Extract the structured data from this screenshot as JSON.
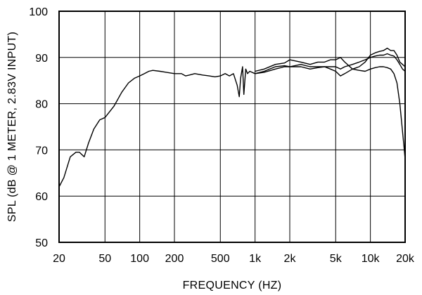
{
  "chart_data": {
    "type": "line",
    "title": "",
    "xlabel": "FREQUENCY  (HZ)",
    "ylabel": "SPL (dB @ 1 METER, 2.83V INPUT)",
    "x_scale": "log",
    "xlim": [
      20,
      20000
    ],
    "ylim": [
      50,
      100
    ],
    "grid": true,
    "x_ticks": [
      {
        "value": 20,
        "label": "20"
      },
      {
        "value": 50,
        "label": "50"
      },
      {
        "value": 100,
        "label": "100"
      },
      {
        "value": 200,
        "label": "200"
      },
      {
        "value": 500,
        "label": "500"
      },
      {
        "value": 1000,
        "label": "1k"
      },
      {
        "value": 2000,
        "label": "2k"
      },
      {
        "value": 5000,
        "label": "5k"
      },
      {
        "value": 10000,
        "label": "10k"
      },
      {
        "value": 20000,
        "label": "20k"
      }
    ],
    "y_ticks": [
      {
        "value": 50,
        "label": "50"
      },
      {
        "value": 60,
        "label": "60"
      },
      {
        "value": 70,
        "label": "70"
      },
      {
        "value": 80,
        "label": "80"
      },
      {
        "value": 90,
        "label": "90"
      },
      {
        "value": 100,
        "label": "100"
      }
    ],
    "series": [
      {
        "x": [
          20,
          22,
          25,
          28,
          30,
          33,
          36,
          40,
          45,
          50,
          60,
          70,
          80,
          90,
          100,
          110,
          120,
          130,
          150,
          170,
          200,
          230,
          250,
          270,
          300,
          350,
          400,
          450,
          500,
          550,
          600,
          650,
          700,
          730,
          750,
          780,
          800,
          830,
          860,
          900,
          1000,
          1200,
          1500,
          1800,
          2000,
          2500,
          3000,
          3500,
          4000,
          4500,
          5000,
          5500,
          6000,
          7000,
          8000,
          9000,
          10000,
          11000,
          12000,
          13000,
          14000,
          15000,
          16000,
          17000,
          18000,
          19000,
          20000
        ],
        "values": [
          62,
          64,
          68.5,
          69.5,
          69.5,
          68.5,
          71.5,
          74.5,
          76.5,
          77,
          79.5,
          82.5,
          84.5,
          85.5,
          86,
          86.5,
          87,
          87.2,
          87,
          86.8,
          86.5,
          86.5,
          86,
          86.2,
          86.5,
          86.2,
          86,
          85.8,
          86,
          86.5,
          86,
          86.5,
          84,
          81.5,
          85.5,
          88,
          82,
          87.5,
          86.5,
          87,
          86.5,
          87,
          88,
          88.2,
          88,
          88,
          87.5,
          87.8,
          88,
          88,
          88,
          87.5,
          88,
          88.5,
          89,
          89.5,
          90,
          90.3,
          90.5,
          90.5,
          90.8,
          90.5,
          90.3,
          89.5,
          88.5,
          87.5,
          87
        ]
      },
      {
        "x": [
          1000,
          1200,
          1500,
          1800,
          2000,
          2500,
          3000,
          3500,
          4000,
          4500,
          5000,
          5500,
          6000,
          7000,
          8000,
          9000,
          10000,
          11000,
          12000,
          13000,
          14000,
          15000,
          16000,
          17000,
          18000,
          19000,
          20000
        ],
        "values": [
          87,
          87.5,
          88.5,
          88.8,
          89.5,
          89,
          88.5,
          89,
          89,
          89.5,
          89.5,
          90,
          89,
          87.5,
          88,
          89,
          90.5,
          91,
          91.3,
          91.5,
          92,
          91.5,
          91.5,
          90.5,
          89,
          88.5,
          88
        ]
      },
      {
        "x": [
          1000,
          1200,
          1500,
          1800,
          2000,
          2500,
          3000,
          3500,
          4000,
          4500,
          5000,
          5500,
          6000,
          7000,
          8000,
          9000,
          10000,
          11000,
          12000,
          13000,
          14000,
          15000,
          16000,
          17000,
          18000,
          18500,
          19000,
          19500,
          20000
        ],
        "values": [
          86.5,
          86.8,
          87.5,
          88,
          88,
          88.5,
          88,
          88,
          88,
          87.5,
          87,
          86,
          86.5,
          87.5,
          87.2,
          87,
          87.5,
          87.8,
          88,
          88,
          87.8,
          87.5,
          86.5,
          84.5,
          80,
          77,
          74,
          71,
          68
        ]
      }
    ]
  }
}
